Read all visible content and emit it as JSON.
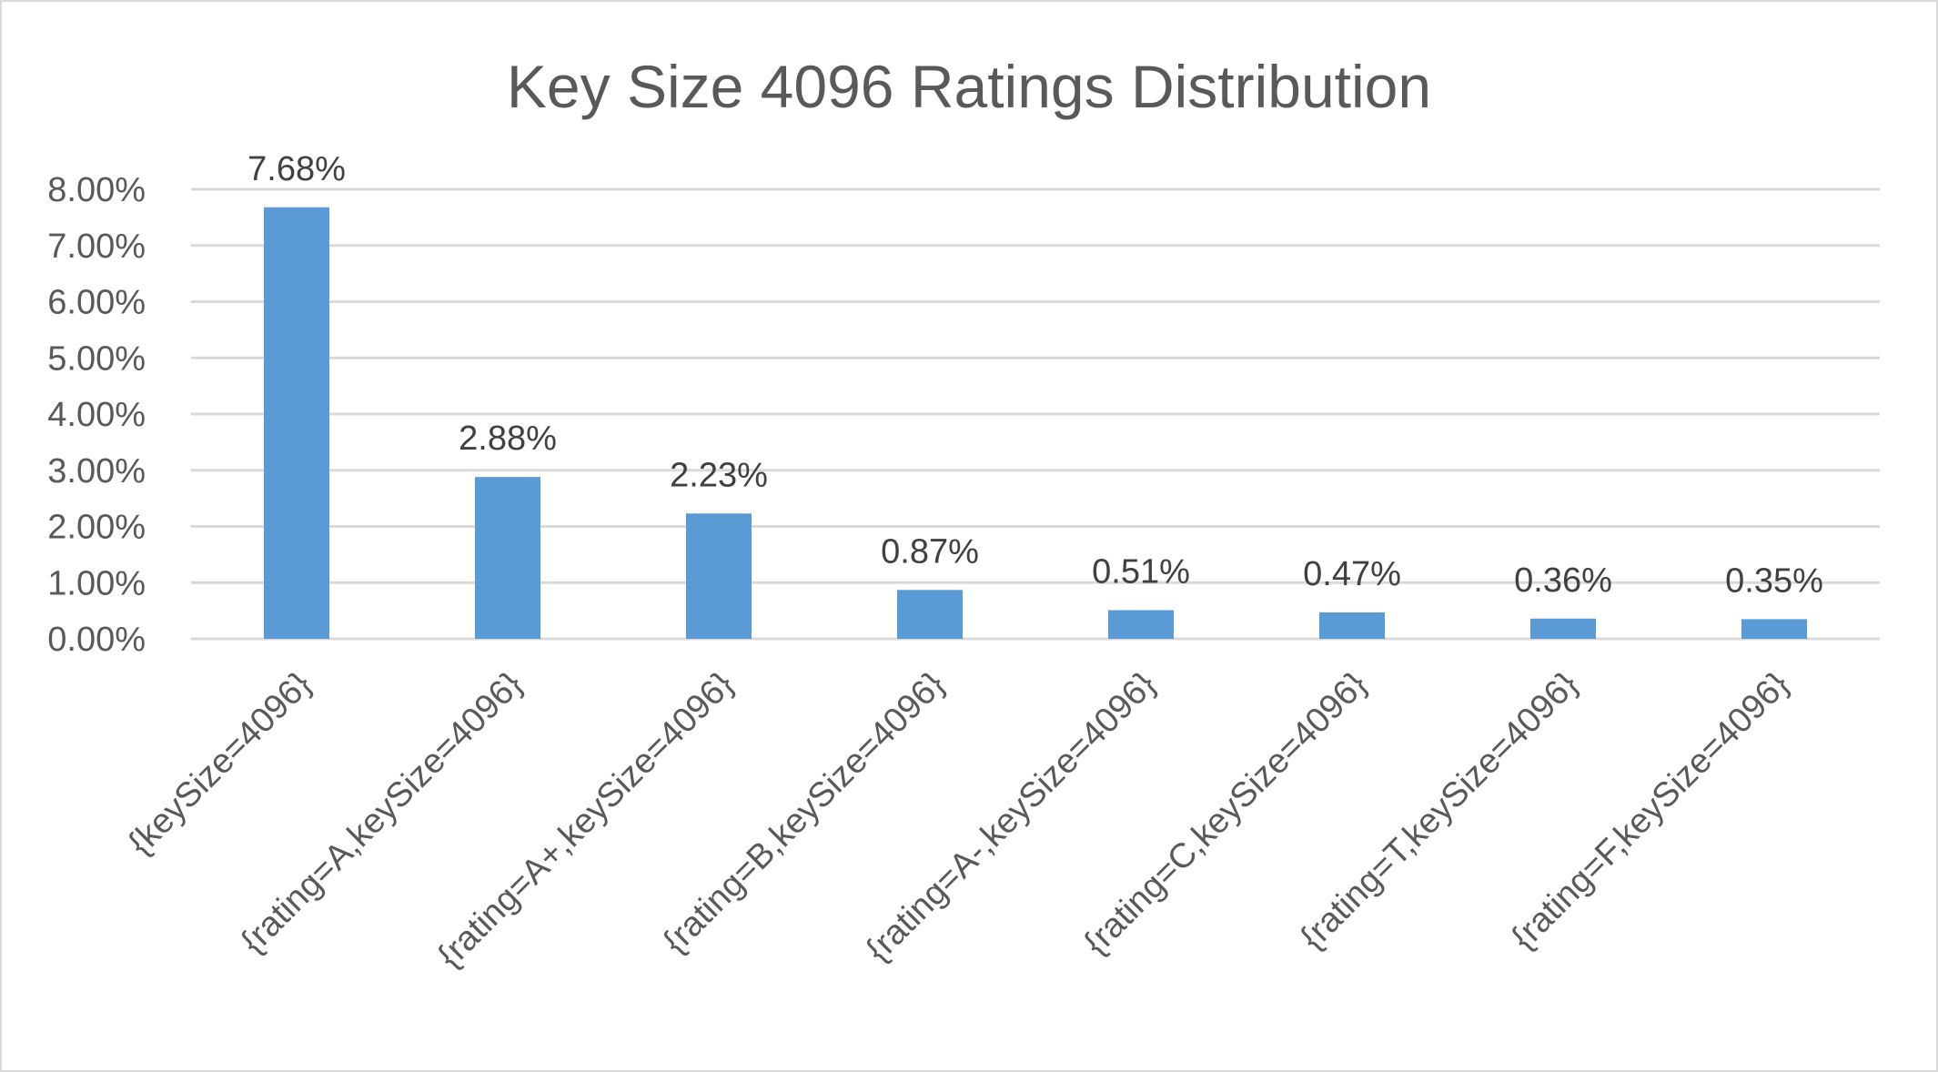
{
  "chart_data": {
    "type": "bar",
    "title": "Key Size 4096 Ratings Distribution",
    "xlabel": "",
    "ylabel": "",
    "categories": [
      "{keySize=4096}",
      "{rating=A,keySize=4096}",
      "{rating=A+,keySize=4096}",
      "{rating=B,keySize=4096}",
      "{rating=A-,keySize=4096}",
      "{rating=C,keySize=4096}",
      "{rating=T,keySize=4096}",
      "{rating=F,keySize=4096}"
    ],
    "values": [
      7.68,
      2.88,
      2.23,
      0.87,
      0.51,
      0.47,
      0.36,
      0.35
    ],
    "data_labels": [
      "7.68%",
      "2.88%",
      "2.23%",
      "0.87%",
      "0.51%",
      "0.47%",
      "0.36%",
      "0.35%"
    ],
    "y_ticks": [
      0,
      1,
      2,
      3,
      4,
      5,
      6,
      7,
      8
    ],
    "y_tick_labels": [
      "0.00%",
      "1.00%",
      "2.00%",
      "3.00%",
      "4.00%",
      "5.00%",
      "6.00%",
      "7.00%",
      "8.00%"
    ],
    "ylim": [
      0,
      8
    ],
    "grid": true,
    "legend": "none",
    "bar_color": "#5b9bd5",
    "gridline_color": "#d9d9d9",
    "text_color": "#595959"
  }
}
